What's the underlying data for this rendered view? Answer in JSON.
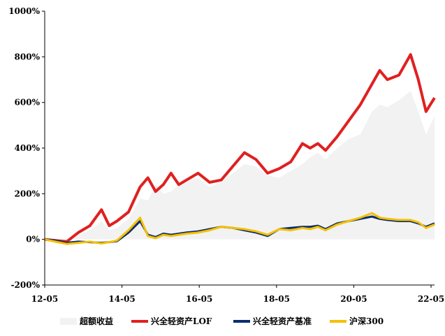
{
  "chart_data": {
    "type": "line",
    "title": "",
    "xlabel": "",
    "ylabel": "",
    "ylim": [
      -200,
      1000
    ],
    "yticks": [
      "1000%",
      "800%",
      "600%",
      "400%",
      "200%",
      "0%",
      "-200%"
    ],
    "ytick_values": [
      1000,
      800,
      600,
      400,
      200,
      0,
      -200
    ],
    "xticks": [
      "12-05",
      "14-05",
      "16-05",
      "18-05",
      "20-05",
      "22-05"
    ],
    "xlim": [
      2012.33,
      2022.42
    ],
    "grid": false,
    "legend_position": "bottom",
    "series": [
      {
        "name": "超额收益",
        "render": "area",
        "color": "#f2f2f2",
        "x": [
          2012.33,
          2012.6,
          2012.9,
          2013.2,
          2013.5,
          2013.8,
          2014.0,
          2014.2,
          2014.5,
          2014.8,
          2015.0,
          2015.2,
          2015.4,
          2015.6,
          2015.8,
          2016.0,
          2016.3,
          2016.6,
          2016.9,
          2017.2,
          2017.5,
          2017.8,
          2018.1,
          2018.4,
          2018.7,
          2019.0,
          2019.2,
          2019.4,
          2019.6,
          2019.9,
          2020.2,
          2020.5,
          2020.8,
          2021.0,
          2021.2,
          2021.5,
          2021.8,
          2022.0,
          2022.2,
          2022.42
        ],
        "values": [
          0,
          -10,
          -20,
          20,
          40,
          80,
          40,
          50,
          90,
          180,
          170,
          240,
          200,
          210,
          240,
          250,
          270,
          230,
          250,
          290,
          330,
          320,
          280,
          270,
          300,
          330,
          360,
          380,
          350,
          400,
          440,
          460,
          560,
          590,
          580,
          610,
          650,
          560,
          460,
          540
        ]
      },
      {
        "name": "兴全轻资产LOF",
        "render": "line",
        "color": "#e02020",
        "x": [
          2012.33,
          2012.6,
          2012.9,
          2013.2,
          2013.5,
          2013.8,
          2014.0,
          2014.2,
          2014.5,
          2014.8,
          2015.0,
          2015.2,
          2015.4,
          2015.6,
          2015.8,
          2016.0,
          2016.3,
          2016.6,
          2016.9,
          2017.2,
          2017.5,
          2017.8,
          2018.1,
          2018.4,
          2018.7,
          2019.0,
          2019.2,
          2019.4,
          2019.6,
          2019.9,
          2020.2,
          2020.5,
          2020.8,
          2021.0,
          2021.2,
          2021.5,
          2021.8,
          2022.0,
          2022.2,
          2022.42
        ],
        "values": [
          0,
          -5,
          -10,
          30,
          60,
          130,
          60,
          80,
          120,
          230,
          270,
          210,
          240,
          290,
          240,
          260,
          290,
          250,
          260,
          320,
          380,
          350,
          290,
          310,
          340,
          420,
          400,
          420,
          390,
          450,
          520,
          590,
          680,
          740,
          700,
          720,
          810,
          700,
          560,
          620
        ]
      },
      {
        "name": "兴全轻资产基准",
        "render": "line",
        "color": "#0a2d6e",
        "x": [
          2012.33,
          2012.6,
          2012.9,
          2013.2,
          2013.5,
          2013.8,
          2014.0,
          2014.2,
          2014.5,
          2014.8,
          2015.0,
          2015.2,
          2015.4,
          2015.6,
          2015.8,
          2016.0,
          2016.3,
          2016.6,
          2016.9,
          2017.2,
          2017.5,
          2017.8,
          2018.1,
          2018.4,
          2018.7,
          2019.0,
          2019.2,
          2019.4,
          2019.6,
          2019.9,
          2020.2,
          2020.5,
          2020.8,
          2021.0,
          2021.2,
          2021.5,
          2021.8,
          2022.0,
          2022.2,
          2022.42
        ],
        "values": [
          0,
          -5,
          -15,
          -10,
          -12,
          -15,
          -12,
          -8,
          30,
          80,
          20,
          10,
          25,
          20,
          25,
          30,
          35,
          45,
          55,
          50,
          40,
          30,
          15,
          45,
          50,
          55,
          55,
          60,
          45,
          70,
          80,
          90,
          100,
          90,
          85,
          80,
          80,
          70,
          55,
          70
        ]
      },
      {
        "name": "沪深300",
        "render": "line",
        "color": "#f5c000",
        "x": [
          2012.33,
          2012.6,
          2012.9,
          2013.2,
          2013.5,
          2013.8,
          2014.0,
          2014.2,
          2014.5,
          2014.8,
          2015.0,
          2015.2,
          2015.4,
          2015.6,
          2015.8,
          2016.0,
          2016.3,
          2016.6,
          2016.9,
          2017.2,
          2017.5,
          2017.8,
          2018.1,
          2018.4,
          2018.7,
          2019.0,
          2019.2,
          2019.4,
          2019.6,
          2019.9,
          2020.2,
          2020.5,
          2020.8,
          2021.0,
          2021.2,
          2021.5,
          2021.8,
          2022.0,
          2022.2,
          2022.42
        ],
        "values": [
          0,
          -10,
          -20,
          -15,
          -10,
          -18,
          -12,
          -5,
          40,
          95,
          15,
          5,
          20,
          15,
          20,
          25,
          30,
          40,
          55,
          50,
          45,
          35,
          20,
          45,
          40,
          50,
          45,
          55,
          40,
          65,
          80,
          95,
          115,
          95,
          90,
          85,
          85,
          75,
          50,
          65
        ]
      }
    ]
  }
}
